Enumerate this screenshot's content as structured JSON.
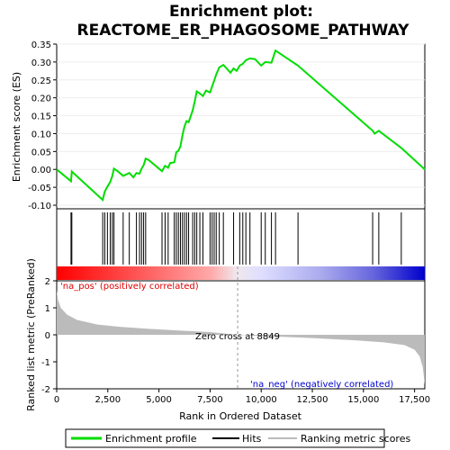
{
  "chart_data": {
    "type": "line",
    "title_line1": "Enrichment plot:",
    "title_line2": "REACTOME_ER_PHAGOSOME_PATHWAY",
    "es_panel": {
      "ylabel": "Enrichment score (ES)",
      "ylim": [
        -0.11,
        0.35
      ],
      "yticks": [
        -0.1,
        -0.05,
        0.0,
        0.05,
        0.1,
        0.15,
        0.2,
        0.25,
        0.3,
        0.35
      ],
      "ytick_labels": [
        "-0.10",
        "-0.05",
        "0.00",
        "0.05",
        "0.10",
        "0.15",
        "0.20",
        "0.25",
        "0.30",
        "0.35"
      ],
      "line_color": "#00dd00",
      "profile": [
        [
          0,
          0.0
        ],
        [
          700,
          -0.033
        ],
        [
          740,
          -0.006
        ],
        [
          2250,
          -0.085
        ],
        [
          2350,
          -0.062
        ],
        [
          2480,
          -0.048
        ],
        [
          2620,
          -0.035
        ],
        [
          2720,
          -0.018
        ],
        [
          2800,
          0.002
        ],
        [
          3000,
          -0.006
        ],
        [
          3250,
          -0.018
        ],
        [
          3550,
          -0.01
        ],
        [
          3750,
          -0.022
        ],
        [
          3900,
          -0.01
        ],
        [
          4050,
          -0.012
        ],
        [
          4150,
          0.002
        ],
        [
          4250,
          0.012
        ],
        [
          4350,
          0.03
        ],
        [
          4500,
          0.026
        ],
        [
          5150,
          -0.005
        ],
        [
          5300,
          0.01
        ],
        [
          5450,
          0.005
        ],
        [
          5550,
          0.018
        ],
        [
          5750,
          0.02
        ],
        [
          5850,
          0.048
        ],
        [
          5950,
          0.052
        ],
        [
          6050,
          0.065
        ],
        [
          6150,
          0.095
        ],
        [
          6250,
          0.12
        ],
        [
          6350,
          0.135
        ],
        [
          6450,
          0.132
        ],
        [
          6550,
          0.148
        ],
        [
          6650,
          0.165
        ],
        [
          6750,
          0.19
        ],
        [
          6850,
          0.218
        ],
        [
          7000,
          0.212
        ],
        [
          7150,
          0.205
        ],
        [
          7300,
          0.22
        ],
        [
          7500,
          0.215
        ],
        [
          7600,
          0.232
        ],
        [
          7700,
          0.248
        ],
        [
          7800,
          0.265
        ],
        [
          7950,
          0.285
        ],
        [
          8150,
          0.292
        ],
        [
          8500,
          0.27
        ],
        [
          8650,
          0.282
        ],
        [
          8800,
          0.275
        ],
        [
          8950,
          0.29
        ],
        [
          9100,
          0.295
        ],
        [
          9250,
          0.305
        ],
        [
          9450,
          0.31
        ],
        [
          9700,
          0.308
        ],
        [
          10000,
          0.29
        ],
        [
          10200,
          0.3
        ],
        [
          10500,
          0.298
        ],
        [
          10700,
          0.332
        ],
        [
          11800,
          0.29
        ],
        [
          15450,
          0.108
        ],
        [
          15550,
          0.1
        ],
        [
          15750,
          0.108
        ],
        [
          16850,
          0.06
        ],
        [
          18000,
          0.0
        ]
      ]
    },
    "hits": [
      700,
      740,
      2250,
      2350,
      2480,
      2620,
      2720,
      2800,
      3250,
      3550,
      3900,
      4050,
      4150,
      4250,
      4350,
      5150,
      5300,
      5450,
      5750,
      5850,
      5950,
      6050,
      6150,
      6250,
      6350,
      6450,
      6650,
      6750,
      6850,
      7000,
      7150,
      7500,
      7600,
      7700,
      7800,
      7950,
      8150,
      8650,
      8950,
      9100,
      9250,
      9450,
      10000,
      10200,
      10500,
      10700,
      11800,
      15450,
      15750,
      16850
    ],
    "rank_panel": {
      "ylabel": "Ranked list metric (PreRanked)",
      "ylim": [
        -2,
        2
      ],
      "yticks": [
        -2,
        -1,
        0,
        1,
        2
      ],
      "ytick_labels": [
        "-2",
        "-1",
        "0",
        "1",
        "2"
      ],
      "zero_cross_label": "Zero cross at 8849",
      "zero_cross": 8849,
      "pos_label": "'na_pos' (positively correlated)",
      "neg_label": "'na_neg' (negatively correlated)",
      "metric_curve": [
        [
          0,
          1.65
        ],
        [
          60,
          1.3
        ],
        [
          200,
          1.0
        ],
        [
          500,
          0.75
        ],
        [
          1000,
          0.55
        ],
        [
          2000,
          0.38
        ],
        [
          3000,
          0.3
        ],
        [
          4500,
          0.22
        ],
        [
          6000,
          0.16
        ],
        [
          7500,
          0.1
        ],
        [
          8849,
          0.0
        ],
        [
          10500,
          -0.06
        ],
        [
          12500,
          -0.12
        ],
        [
          14500,
          -0.2
        ],
        [
          16000,
          -0.28
        ],
        [
          17000,
          -0.38
        ],
        [
          17500,
          -0.55
        ],
        [
          17750,
          -0.8
        ],
        [
          17900,
          -1.2
        ],
        [
          18000,
          -1.85
        ]
      ]
    },
    "xlabel": "Rank in Ordered Dataset",
    "xlim": [
      0,
      18000
    ],
    "xticks": [
      0,
      2500,
      5000,
      7500,
      10000,
      12500,
      15000,
      17500
    ],
    "xtick_labels": [
      "0",
      "2,500",
      "5,000",
      "7,500",
      "10,000",
      "12,500",
      "15,000",
      "17,500"
    ],
    "legend": {
      "placement": "bottom",
      "items": [
        {
          "label": "Enrichment profile",
          "color": "#00dd00"
        },
        {
          "label": "Hits",
          "color": "#000000"
        },
        {
          "label": "Ranking metric scores",
          "color": "#bbbbbb"
        }
      ]
    }
  }
}
